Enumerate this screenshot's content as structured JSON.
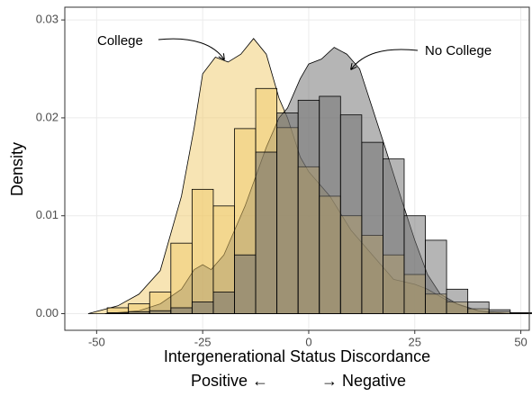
{
  "chart_data": {
    "type": "histogram",
    "xlabel": "Intergenerational Status Discordance",
    "xlabel2_left": "Positive ←",
    "xlabel2_right": "→ Negative",
    "ylabel": "Density",
    "bins": [
      -47.5,
      -42.5,
      -37.5,
      -32.5,
      -27.5,
      -22.5,
      -17.5,
      -12.5,
      -7.5,
      -2.5,
      2.5,
      7.5,
      12.5,
      17.5,
      22.5,
      27.5,
      32.5,
      37.5,
      42.5,
      47.5,
      52.5
    ],
    "series": [
      {
        "name": "College",
        "color": "#f0c96a",
        "values": [
          0.0006,
          0.001,
          0.0022,
          0.0072,
          0.0127,
          0.011,
          0.0189,
          0.023,
          0.019,
          0.015,
          0.012,
          0.01,
          0.008,
          0.006,
          0.004,
          0.002,
          0.0012,
          0.0005,
          0.0002,
          0.0001
        ],
        "density": {
          "x": [
            -52,
            -45,
            -40,
            -35,
            -30,
            -27,
            -25,
            -22,
            -19,
            -16,
            -13,
            -10,
            -7,
            -5,
            -2,
            0,
            5,
            10,
            15,
            20,
            25,
            28,
            32,
            36,
            40,
            44
          ],
          "y": [
            0,
            0.0008,
            0.002,
            0.0044,
            0.012,
            0.019,
            0.0245,
            0.0262,
            0.0257,
            0.0265,
            0.0281,
            0.0265,
            0.022,
            0.02,
            0.016,
            0.0145,
            0.012,
            0.0085,
            0.006,
            0.0035,
            0.003,
            0.0025,
            0.0015,
            0.0008,
            0.0003,
            0
          ]
        }
      },
      {
        "name": "No College",
        "color": "#6b6b6b",
        "values": [
          0.0001,
          0.0002,
          0.0003,
          0.0006,
          0.0012,
          0.0022,
          0.006,
          0.0165,
          0.0205,
          0.0218,
          0.0222,
          0.0203,
          0.0175,
          0.0158,
          0.01,
          0.0075,
          0.0025,
          0.0012,
          0.0004,
          0.0001
        ],
        "density": {
          "x": [
            -48,
            -40,
            -35,
            -30,
            -27,
            -25,
            -23,
            -20,
            -15,
            -10,
            -7,
            -5,
            -2,
            0,
            3,
            6,
            9,
            12,
            15,
            18,
            22,
            25,
            28,
            31,
            35,
            40,
            47
          ],
          "y": [
            0,
            0.0003,
            0.001,
            0.0025,
            0.0045,
            0.005,
            0.0045,
            0.006,
            0.011,
            0.017,
            0.02,
            0.021,
            0.024,
            0.0255,
            0.026,
            0.0272,
            0.0265,
            0.025,
            0.021,
            0.017,
            0.0115,
            0.0075,
            0.004,
            0.002,
            0.001,
            0.0003,
            0
          ]
        }
      }
    ],
    "xlim": [
      -57.5,
      52
    ],
    "ylim": [
      -0.0017,
      0.0313
    ],
    "xticks": [
      -50,
      -25,
      0,
      25,
      50
    ],
    "yticks": [
      {
        "value": 0,
        "label": "0.00"
      },
      {
        "value": 0.01,
        "label": "0.01"
      },
      {
        "value": 0.02,
        "label": "0.02"
      },
      {
        "value": 0.03,
        "label": "0.03"
      }
    ],
    "grid": true
  }
}
